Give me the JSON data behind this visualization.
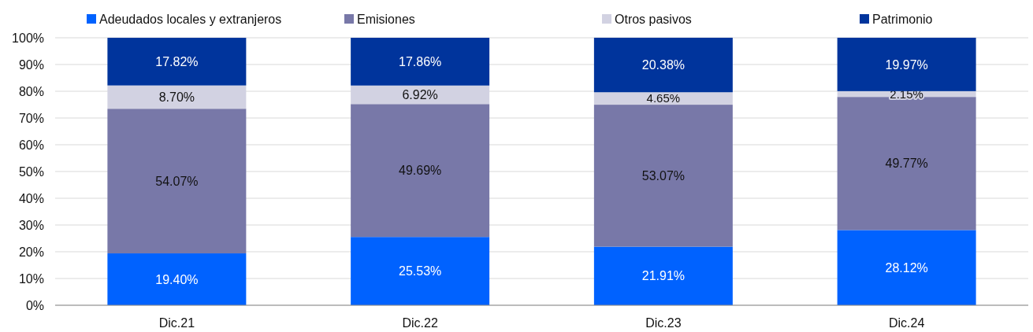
{
  "chart_data": {
    "type": "bar",
    "stacked": true,
    "categories": [
      "Dic.21",
      "Dic.22",
      "Dic.23",
      "Dic.24"
    ],
    "series": [
      {
        "name": "Adeudados locales y extranjeros",
        "color": "#0062ff",
        "values": [
          19.4,
          25.53,
          21.91,
          28.12
        ],
        "value_labels": [
          "19.40%",
          "25.53%",
          "21.91%",
          "28.12%"
        ]
      },
      {
        "name": "Emisiones",
        "color": "#7878a8",
        "values": [
          54.07,
          49.69,
          53.07,
          49.77
        ],
        "value_labels": [
          "54.07%",
          "49.69%",
          "53.07%",
          "49.77%"
        ]
      },
      {
        "name": "Otros pasivos",
        "color": "#d2d2e2",
        "values": [
          8.7,
          6.92,
          4.65,
          2.15
        ],
        "value_labels": [
          "8.70%",
          "6.92%",
          "4.65%",
          "2.15%"
        ]
      },
      {
        "name": "Patrimonio",
        "color": "#00349c",
        "values": [
          17.82,
          17.86,
          20.38,
          19.97
        ],
        "value_labels": [
          "17.82%",
          "17.86%",
          "20.38%",
          "19.97%"
        ]
      }
    ],
    "ylim": [
      0,
      100
    ],
    "yticks": [
      {
        "value": 0,
        "label": "0%"
      },
      {
        "value": 10,
        "label": "10%"
      },
      {
        "value": 20,
        "label": "20%"
      },
      {
        "value": 30,
        "label": "30%"
      },
      {
        "value": 40,
        "label": "40%"
      },
      {
        "value": 50,
        "label": "50%"
      },
      {
        "value": 60,
        "label": "60%"
      },
      {
        "value": 70,
        "label": "70%"
      },
      {
        "value": 80,
        "label": "80%"
      },
      {
        "value": 90,
        "label": "90%"
      },
      {
        "value": 100,
        "label": "100%"
      }
    ],
    "grid": "y",
    "legend": "top"
  }
}
